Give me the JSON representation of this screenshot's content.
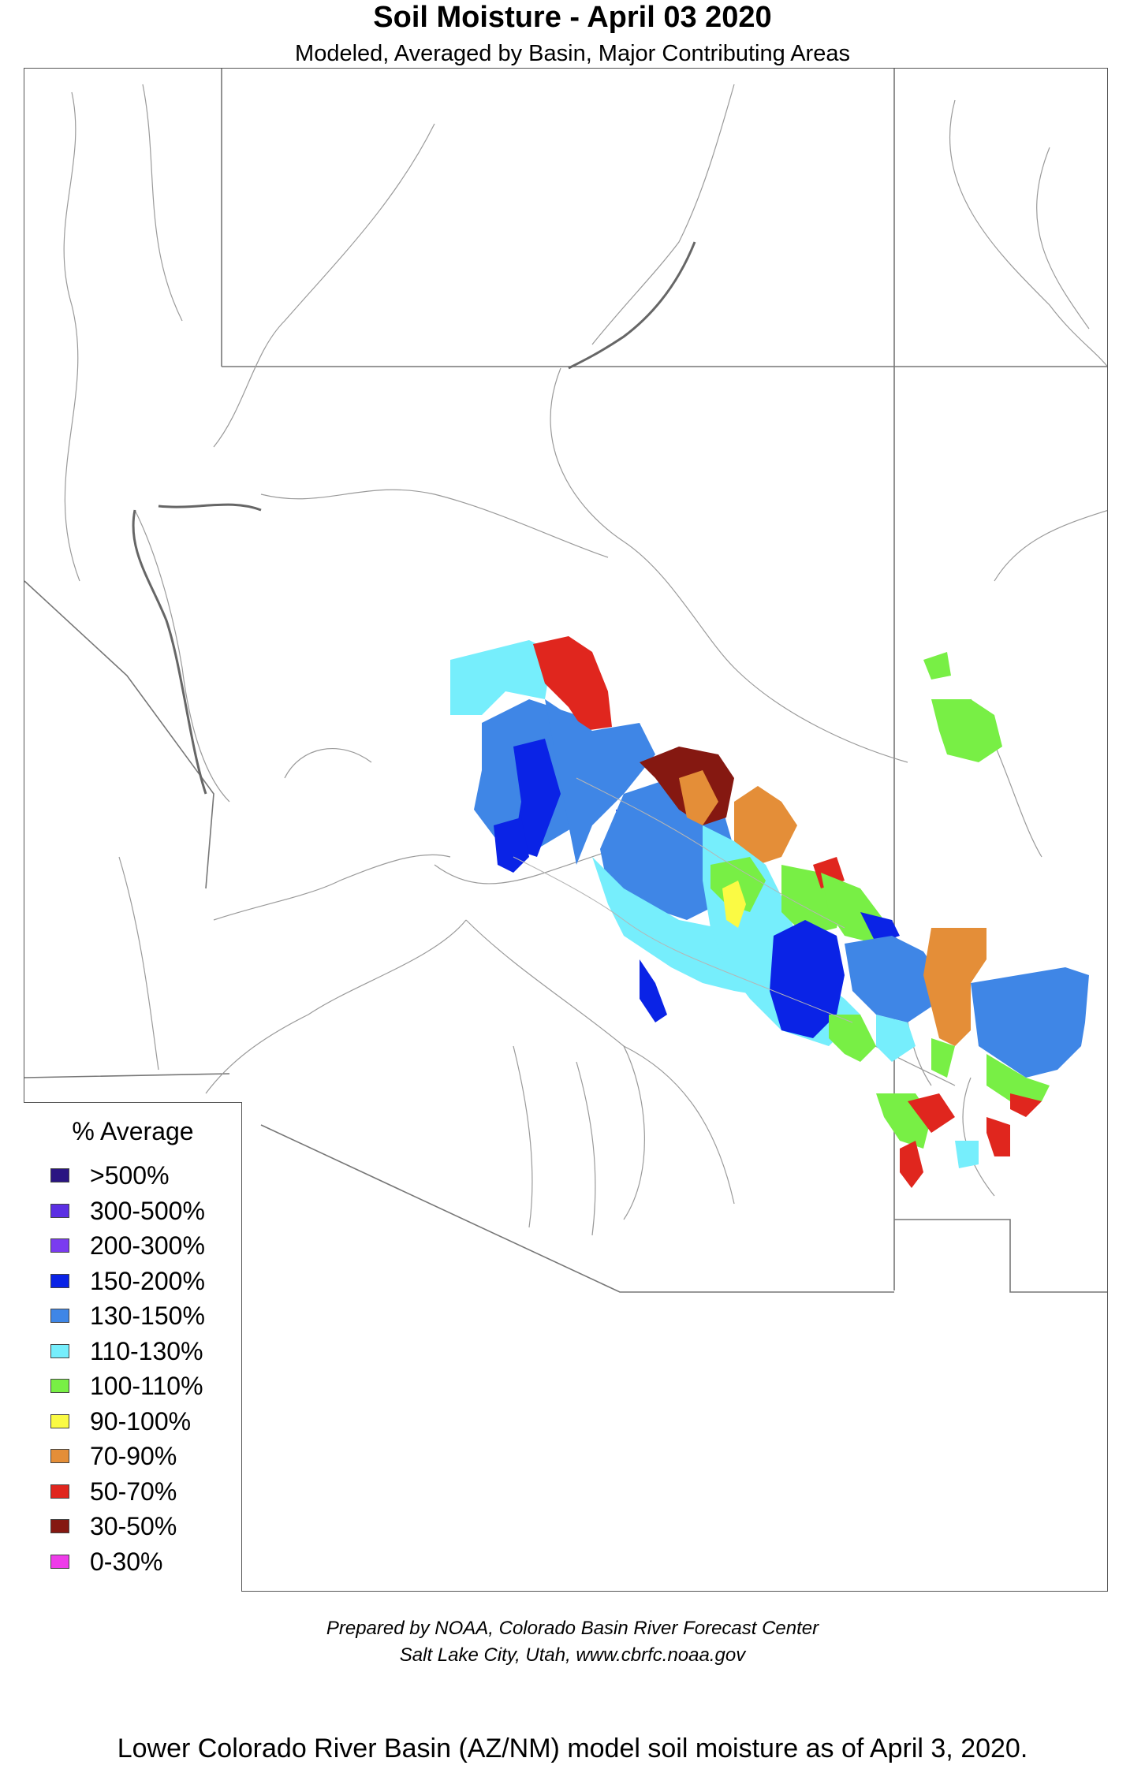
{
  "map": {
    "title": "Soil Moisture - April 03 2020",
    "subtitle": "Modeled, Averaged by Basin, Major Contributing Areas"
  },
  "legend": {
    "title": "% Average",
    "items": [
      {
        "label": ">500%",
        "color": "#2a1582"
      },
      {
        "label": "300-500%",
        "color": "#5b2fe3"
      },
      {
        "label": "200-300%",
        "color": "#7a3cf0"
      },
      {
        "label": "150-200%",
        "color": "#0a23e6"
      },
      {
        "label": "130-150%",
        "color": "#3f86e6"
      },
      {
        "label": "110-130%",
        "color": "#76eefc"
      },
      {
        "label": "100-110%",
        "color": "#78ef45"
      },
      {
        "label": "90-100%",
        "color": "#fafa44"
      },
      {
        "label": "70-90%",
        "color": "#e48e38"
      },
      {
        "label": "50-70%",
        "color": "#e0261e"
      },
      {
        "label": "30-50%",
        "color": "#851811"
      },
      {
        "label": "0-30%",
        "color": "#ee3ce9"
      }
    ]
  },
  "credits": {
    "line1": "Prepared by NOAA, Colorado Basin River Forecast Center",
    "line2": "Salt Lake City, Utah, www.cbrfc.noaa.gov"
  },
  "caption": "Lower Colorado River Basin (AZ/NM) model soil moisture as of April 3, 2020."
}
